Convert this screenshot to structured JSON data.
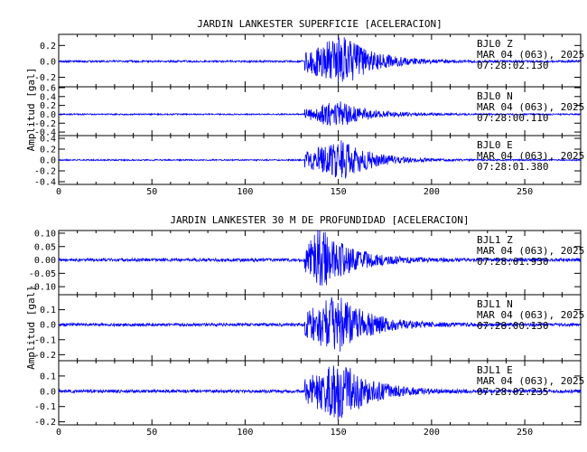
{
  "chart_data": [
    {
      "type": "line",
      "title": "JARDIN LANKESTER SUPERFICIE [ACELERACION]",
      "ylabel": "Amplitud [gal]",
      "xlabel": "",
      "xlim": [
        0,
        280
      ],
      "x_ticks": [
        "0",
        "50",
        "100",
        "150",
        "200",
        "250"
      ],
      "x_tick_values": [
        0,
        50,
        100,
        150,
        200,
        250
      ],
      "line_color": "#0000ff",
      "grid": false,
      "series": [
        {
          "name": "BJL0 Z",
          "ylim": [
            -0.32,
            0.34
          ],
          "yticks": [
            -0.2,
            0.0,
            0.2
          ],
          "ytick_labels": [
            "-0.2",
            "0.0",
            "0.2"
          ],
          "onset_s": 132,
          "peak_s": 152,
          "peak_abs": 0.33,
          "noise_abs": 0.012,
          "annotation": [
            "BJL0   Z",
            "MAR 04 (063), 2025",
            "07:28:02.130"
          ]
        },
        {
          "name": "BJL0 N",
          "ylim": [
            -0.48,
            0.62
          ],
          "yticks": [
            -0.4,
            -0.2,
            0.0,
            0.2,
            0.4,
            0.6
          ],
          "ytick_labels": [
            "-0.4",
            "-0.2",
            "0.0",
            "0.2",
            "0.4",
            "0.6"
          ],
          "onset_s": 132,
          "peak_s": 150,
          "peak_abs": 0.3,
          "noise_abs": 0.015,
          "annotation": [
            "BJL0   N",
            "MAR 04 (063), 2025",
            "07:28:00.110"
          ]
        },
        {
          "name": "BJL0 E",
          "ylim": [
            -0.45,
            0.45
          ],
          "yticks": [
            -0.4,
            -0.2,
            0.0,
            0.2,
            0.4
          ],
          "ytick_labels": [
            "-0.4",
            "-0.2",
            "0.0",
            "0.2",
            "0.4"
          ],
          "onset_s": 132,
          "peak_s": 152,
          "peak_abs": 0.38,
          "noise_abs": 0.012,
          "annotation": [
            "BJL0   E",
            "MAR 04 (063), 2025",
            "07:28:01.380"
          ]
        }
      ]
    },
    {
      "type": "line",
      "title": "JARDIN LANKESTER 30 M DE PROFUNDIDAD [ACELERACION]",
      "ylabel": "Amplitud [gal]",
      "xlabel": "",
      "xlim": [
        0,
        280
      ],
      "x_ticks": [
        "0",
        "50",
        "100",
        "150",
        "200",
        "250"
      ],
      "x_tick_values": [
        0,
        50,
        100,
        150,
        200,
        250
      ],
      "line_color": "#0000ff",
      "grid": false,
      "series": [
        {
          "name": "BJL1 Z",
          "ylim": [
            -0.13,
            0.11
          ],
          "yticks": [
            -0.1,
            -0.05,
            0.0,
            0.05,
            0.1
          ],
          "ytick_labels": [
            "-0.10",
            "-0.05",
            "0.00",
            "0.05",
            "0.10"
          ],
          "onset_s": 132,
          "peak_s": 140,
          "peak_abs": 0.12,
          "noise_abs": 0.006,
          "annotation": [
            "BJL1   Z",
            "MAR 04 (063), 2025",
            "07:28:01.930"
          ]
        },
        {
          "name": "BJL1 N",
          "ylim": [
            -0.24,
            0.2
          ],
          "yticks": [
            -0.2,
            -0.1,
            0.0,
            0.1
          ],
          "ytick_labels": [
            "-0.2",
            "-0.1",
            "0.0",
            "0.1"
          ],
          "onset_s": 132,
          "peak_s": 150,
          "peak_abs": 0.2,
          "noise_abs": 0.01,
          "annotation": [
            "BJL1   N",
            "MAR 04 (063), 2025",
            "07:28:00.130"
          ]
        },
        {
          "name": "BJL1 E",
          "ylim": [
            -0.22,
            0.2
          ],
          "yticks": [
            -0.2,
            -0.1,
            0.0,
            0.1
          ],
          "ytick_labels": [
            "-0.2",
            "-0.1",
            "0.0",
            "0.1"
          ],
          "onset_s": 132,
          "peak_s": 151,
          "peak_abs": 0.2,
          "noise_abs": 0.01,
          "annotation": [
            "BJL1   E",
            "MAR 04 (063), 2025",
            "07:28:02.235"
          ]
        }
      ]
    }
  ]
}
